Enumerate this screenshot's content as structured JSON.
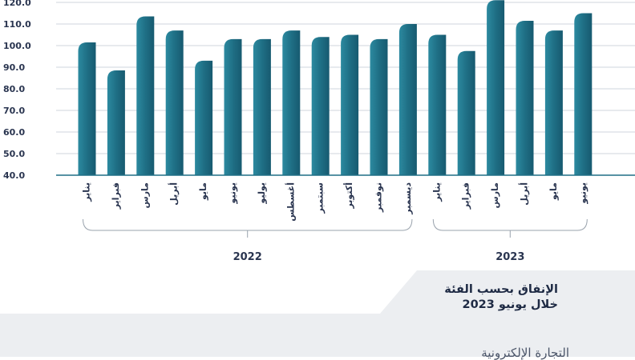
{
  "chart_data": {
    "type": "bar",
    "categories": [
      "يناير",
      "فبراير",
      "مارس",
      "أبريل",
      "مايو",
      "يونيو",
      "يوليو",
      "أغسطس",
      "سبتمبر",
      "أكتوبر",
      "نوفمبر",
      "ديسمبر",
      "يناير",
      "فبراير",
      "مارس",
      "أبريل",
      "مايو",
      "يونيو"
    ],
    "values": [
      101.5,
      88.5,
      113.5,
      107,
      93,
      103,
      103,
      107,
      104,
      105,
      103,
      110,
      105,
      97.5,
      121,
      111.5,
      107,
      115
    ],
    "ylim": [
      40,
      120
    ],
    "yticks": [
      "40.0",
      "50.0",
      "60.0",
      "70.0",
      "80.0",
      "90.0",
      "100.0",
      "110.0",
      "120.0"
    ],
    "grid": true,
    "bar_color": "#1f6f85",
    "groups": [
      {
        "label": "2022",
        "count": 12
      },
      {
        "label": "2023",
        "count": 6
      }
    ]
  },
  "panel": {
    "title_line1": "الإنفاق بحسب الفئة",
    "title_line2": "خلال يونيو 2023"
  },
  "footer": {
    "category_label": "التجارة الإلكترونية"
  }
}
